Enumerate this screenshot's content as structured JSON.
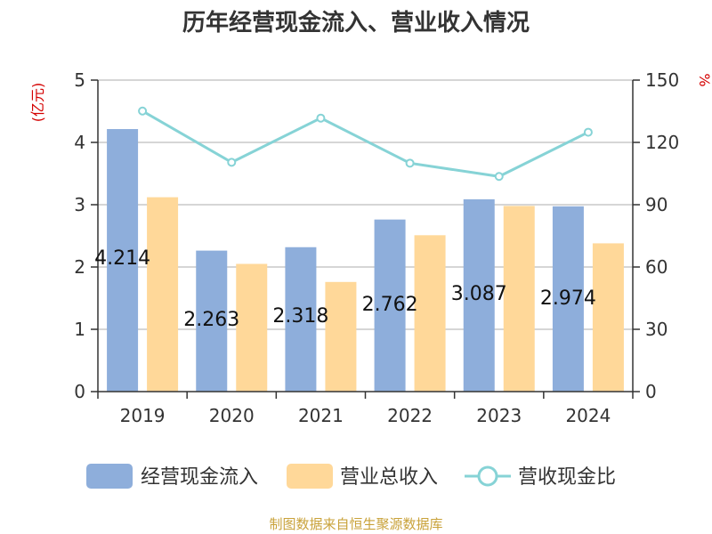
{
  "chart_data": {
    "type": "bar",
    "title": "历年经营现金流入、营业收入情况",
    "categories": [
      "2019",
      "2020",
      "2021",
      "2022",
      "2023",
      "2024"
    ],
    "series": [
      {
        "name": "经营现金流入",
        "type": "bar",
        "axis": "left",
        "color": "#8eaedb",
        "values": [
          4.214,
          2.263,
          2.318,
          2.762,
          3.087,
          2.974
        ],
        "labels": [
          "4.214",
          "2.263",
          "2.318",
          "2.762",
          "3.087",
          "2.974"
        ]
      },
      {
        "name": "营业总收入",
        "type": "bar",
        "axis": "left",
        "color": "#ffd899",
        "values": [
          3.12,
          2.05,
          1.76,
          2.51,
          2.98,
          2.38
        ]
      },
      {
        "name": "营收现金比",
        "type": "line",
        "axis": "right",
        "color": "#86d3d6",
        "values": [
          135.1,
          110.4,
          131.7,
          110.0,
          103.6,
          124.9
        ]
      }
    ],
    "left_axis": {
      "unit": "(亿元)",
      "ylim": [
        0,
        5
      ],
      "ticks": [
        "0",
        "1",
        "2",
        "3",
        "4",
        "5"
      ]
    },
    "right_axis": {
      "unit": "%",
      "ylim": [
        0,
        150
      ],
      "ticks": [
        "0",
        "30",
        "60",
        "90",
        "120",
        "150"
      ]
    },
    "grid": true,
    "legend_position": "bottom",
    "source": "制图数据来自恒生聚源数据库"
  }
}
